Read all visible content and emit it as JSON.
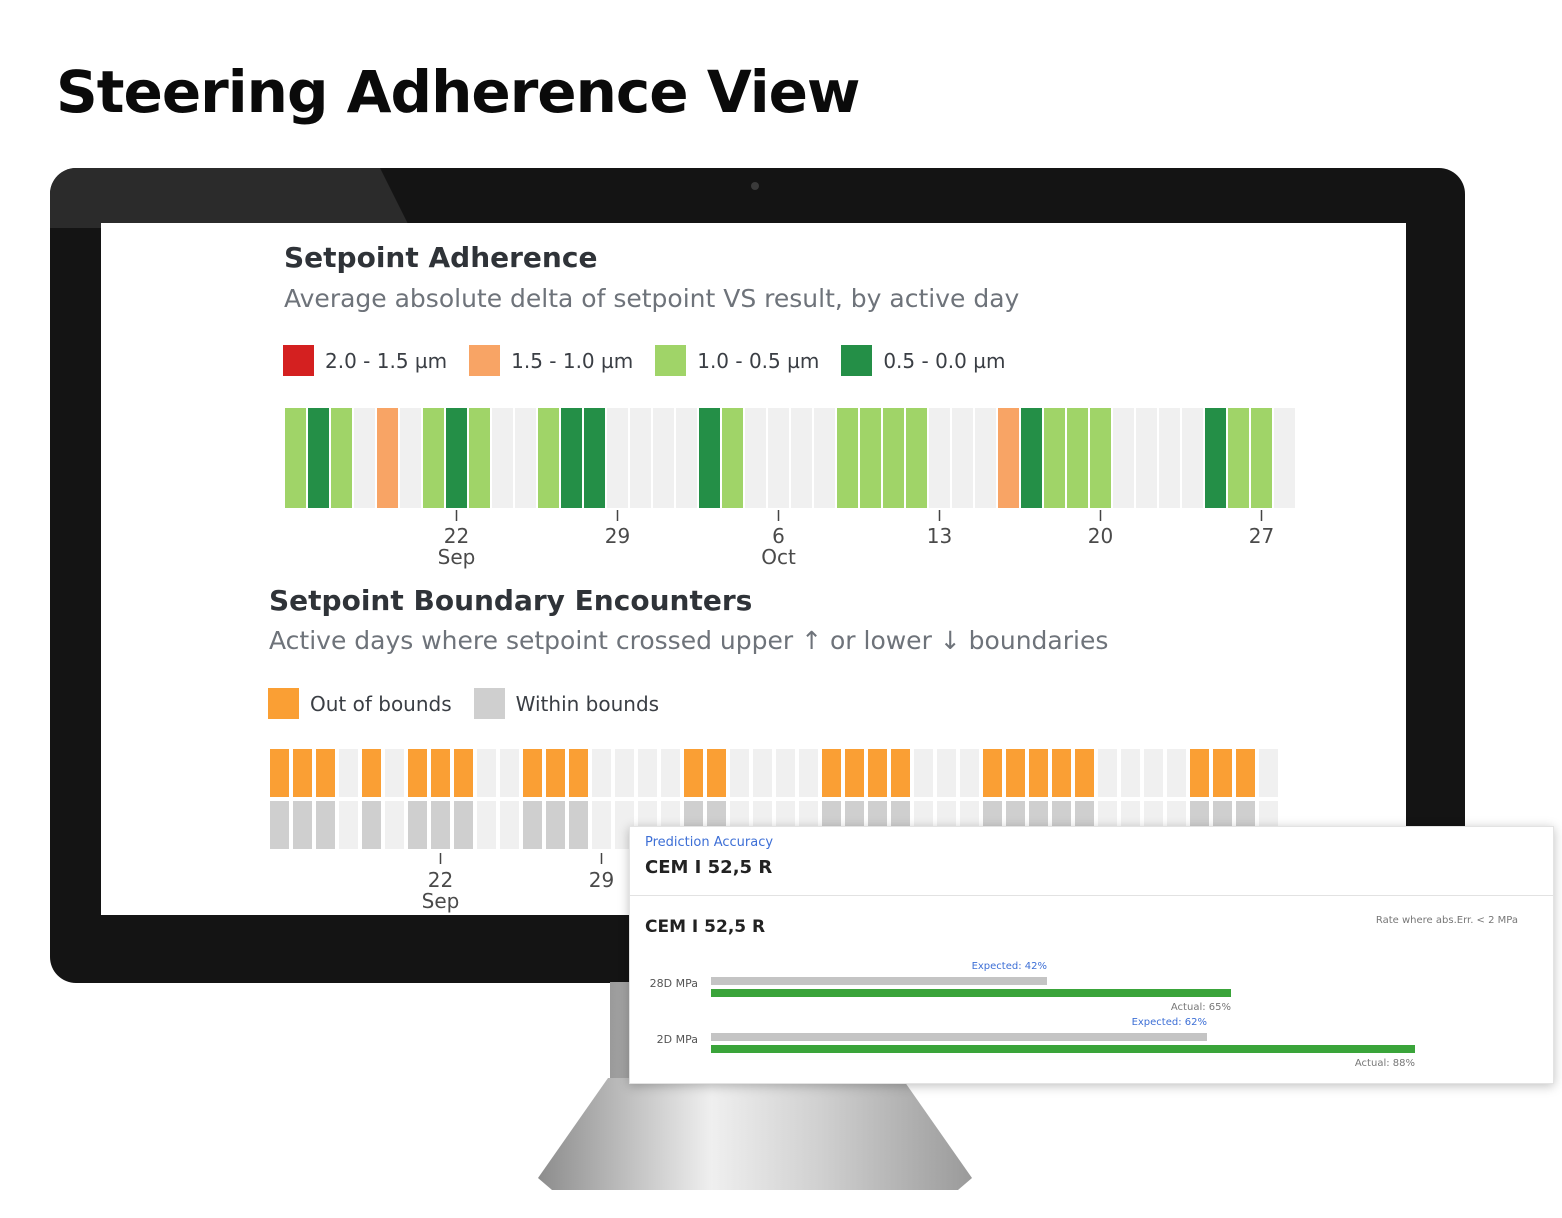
{
  "page": {
    "title": "Steering Adherence View"
  },
  "adherence": {
    "title": "Setpoint Adherence",
    "subtitle": "Average absolute delta of setpoint VS result, by active day",
    "legend": [
      {
        "label": "2.0 - 1.5 µm",
        "color": "#d42020"
      },
      {
        "label": "1.5 - 1.0 µm",
        "color": "#f8a465"
      },
      {
        "label": "1.0 - 0.5 µm",
        "color": "#a0d468"
      },
      {
        "label": "0.5 - 0.0 µm",
        "color": "#248f47"
      }
    ]
  },
  "boundary": {
    "title": "Setpoint Boundary Encounters",
    "subtitle": "Active days where setpoint crossed upper ↑ or lower ↓ boundaries",
    "legend": [
      {
        "label": "Out of bounds",
        "color": "#fa9f34"
      },
      {
        "label": "Within bounds",
        "color": "#cfcfcf"
      }
    ]
  },
  "chart_data": [
    {
      "type": "heatmap",
      "title": "Setpoint Adherence",
      "subtitle": "Average absolute delta of setpoint VS result, by active day",
      "x": [
        "2024-09-15",
        "2024-09-16",
        "2024-09-17",
        "2024-09-18",
        "2024-09-19",
        "2024-09-20",
        "2024-09-21",
        "2024-09-22",
        "2024-09-23",
        "2024-09-24",
        "2024-09-25",
        "2024-09-26",
        "2024-09-27",
        "2024-09-28",
        "2024-09-29",
        "2024-09-30",
        "2024-10-01",
        "2024-10-02",
        "2024-10-03",
        "2024-10-04",
        "2024-10-05",
        "2024-10-06",
        "2024-10-07",
        "2024-10-08",
        "2024-10-09",
        "2024-10-10",
        "2024-10-11",
        "2024-10-12",
        "2024-10-13",
        "2024-10-14",
        "2024-10-15",
        "2024-10-16",
        "2024-10-17",
        "2024-10-18",
        "2024-10-19",
        "2024-10-20",
        "2024-10-21",
        "2024-10-22",
        "2024-10-23",
        "2024-10-24",
        "2024-10-25",
        "2024-10-26",
        "2024-10-27",
        "2024-10-28"
      ],
      "values": [
        "1.0 - 0.5 µm",
        "0.5 - 0.0 µm",
        "1.0 - 0.5 µm",
        null,
        "1.5 - 1.0 µm",
        null,
        "1.0 - 0.5 µm",
        "0.5 - 0.0 µm",
        "1.0 - 0.5 µm",
        null,
        null,
        "1.0 - 0.5 µm",
        "0.5 - 0.0 µm",
        "0.5 - 0.0 µm",
        null,
        null,
        null,
        null,
        "0.5 - 0.0 µm",
        "1.0 - 0.5 µm",
        null,
        null,
        null,
        null,
        "1.0 - 0.5 µm",
        "1.0 - 0.5 µm",
        "1.0 - 0.5 µm",
        "1.0 - 0.5 µm",
        null,
        null,
        null,
        "1.5 - 1.0 µm",
        "0.5 - 0.0 µm",
        "1.0 - 0.5 µm",
        "1.0 - 0.5 µm",
        "1.0 - 0.5 µm",
        null,
        null,
        null,
        null,
        "0.5 - 0.0 µm",
        "1.0 - 0.5 µm",
        "1.0 - 0.5 µm",
        null
      ],
      "tick_labels": [
        {
          "x": "2024-09-22",
          "label": "22",
          "sub": "Sep"
        },
        {
          "x": "2024-09-29",
          "label": "29",
          "sub": ""
        },
        {
          "x": "2024-10-06",
          "label": "6",
          "sub": "Oct"
        },
        {
          "x": "2024-10-13",
          "label": "13",
          "sub": ""
        },
        {
          "x": "2024-10-20",
          "label": "20",
          "sub": ""
        },
        {
          "x": "2024-10-27",
          "label": "27",
          "sub": ""
        }
      ]
    },
    {
      "type": "heatmap",
      "title": "Setpoint Boundary Encounters",
      "subtitle": "Active days where setpoint crossed upper ↑ or lower ↓ boundaries",
      "x": [
        "2024-09-15",
        "2024-09-16",
        "2024-09-17",
        "2024-09-18",
        "2024-09-19",
        "2024-09-20",
        "2024-09-21",
        "2024-09-22",
        "2024-09-23",
        "2024-09-24",
        "2024-09-25",
        "2024-09-26",
        "2024-09-27",
        "2024-09-28",
        "2024-09-29",
        "2024-09-30",
        "2024-10-01",
        "2024-10-02",
        "2024-10-03",
        "2024-10-04",
        "2024-10-05",
        "2024-10-06",
        "2024-10-07",
        "2024-10-08",
        "2024-10-09",
        "2024-10-10",
        "2024-10-11",
        "2024-10-12",
        "2024-10-13",
        "2024-10-14",
        "2024-10-15",
        "2024-10-16",
        "2024-10-17",
        "2024-10-18",
        "2024-10-19",
        "2024-10-20",
        "2024-10-21",
        "2024-10-22",
        "2024-10-23",
        "2024-10-24",
        "2024-10-25",
        "2024-10-26",
        "2024-10-27",
        "2024-10-28"
      ],
      "rows": [
        {
          "name": "upper",
          "values": [
            "Out of bounds",
            "Out of bounds",
            "Out of bounds",
            null,
            "Out of bounds",
            null,
            "Out of bounds",
            "Out of bounds",
            "Out of bounds",
            null,
            null,
            "Out of bounds",
            "Out of bounds",
            "Out of bounds",
            null,
            null,
            null,
            null,
            "Out of bounds",
            "Out of bounds",
            null,
            null,
            null,
            null,
            "Out of bounds",
            "Out of bounds",
            "Out of bounds",
            "Out of bounds",
            null,
            null,
            null,
            "Out of bounds",
            "Out of bounds",
            "Out of bounds",
            "Out of bounds",
            "Out of bounds",
            null,
            null,
            null,
            null,
            "Out of bounds",
            "Out of bounds",
            "Out of bounds",
            null
          ]
        },
        {
          "name": "lower",
          "values": [
            "Within bounds",
            "Within bounds",
            "Within bounds",
            null,
            "Within bounds",
            null,
            "Within bounds",
            "Within bounds",
            "Within bounds",
            null,
            null,
            "Within bounds",
            "Within bounds",
            "Within bounds",
            null,
            null,
            null,
            null,
            "Within bounds",
            "Within bounds",
            null,
            null,
            null,
            null,
            "Within bounds",
            "Within bounds",
            "Within bounds",
            "Within bounds",
            null,
            null,
            null,
            "Within bounds",
            "Within bounds",
            "Within bounds",
            "Within bounds",
            "Within bounds",
            null,
            null,
            null,
            null,
            "Within bounds",
            "Within bounds",
            "Within bounds",
            null
          ]
        }
      ],
      "tick_labels": [
        {
          "x": "2024-09-22",
          "label": "22",
          "sub": "Sep"
        },
        {
          "x": "2024-09-29",
          "label": "29",
          "sub": ""
        }
      ]
    },
    {
      "type": "bar",
      "title": "CEM I 52,5 R",
      "categories": [
        "28D MPa",
        "2D MPa"
      ],
      "series": [
        {
          "name": "Expected",
          "values": [
            42,
            62
          ]
        },
        {
          "name": "Actual",
          "values": [
            65,
            88
          ]
        }
      ],
      "ylim": [
        0,
        100
      ]
    }
  ],
  "card": {
    "eyebrow": "Prediction Accuracy",
    "title": "CEM I 52,5 R",
    "subtitle": "CEM I 52,5 R",
    "note": "Rate where abs.Err. < 2 MPa",
    "rows": [
      {
        "label": "28D MPa",
        "expected": 42,
        "actual": 65,
        "expected_label": "Expected: 42%",
        "actual_label": "Actual: 65%"
      },
      {
        "label": "2D MPa",
        "expected": 62,
        "actual": 88,
        "expected_label": "Expected: 62%",
        "actual_label": "Actual: 88%"
      }
    ],
    "colors": {
      "expected": "#c4c4c4",
      "actual": "#3aa43a",
      "expected_text": "#3d6fd6"
    }
  },
  "colors": {
    "empty_cell": "#f0f0f0"
  }
}
